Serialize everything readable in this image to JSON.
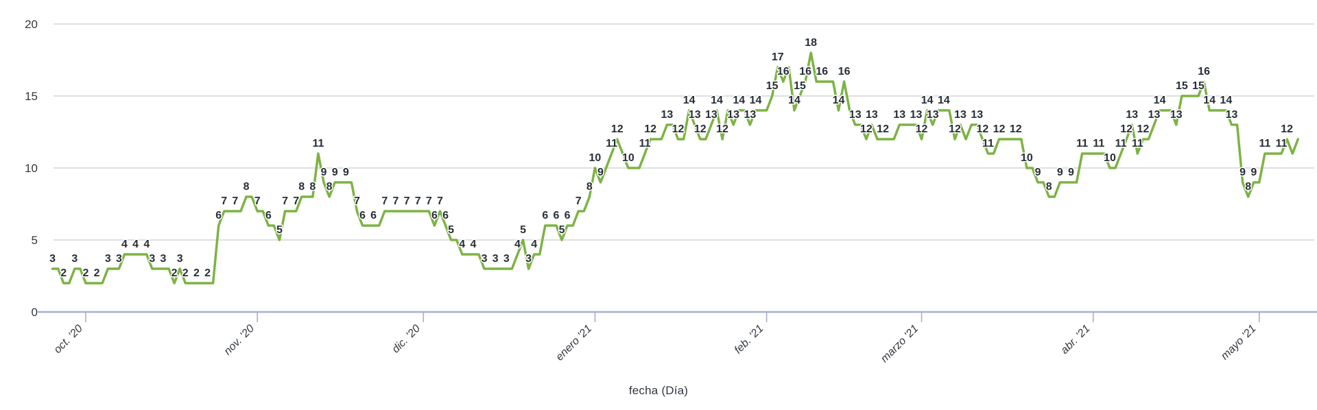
{
  "chart": {
    "x_axis_title": "fecha (Día)"
  },
  "chart_data": {
    "type": "line",
    "title": "",
    "xlabel": "fecha (Día)",
    "ylabel": "",
    "ylim": [
      0,
      20
    ],
    "grid": true,
    "legend": "none",
    "y_tick_labels": [
      "0",
      "5",
      "10",
      "15",
      "20"
    ],
    "y_ticks": [
      0,
      5,
      10,
      15,
      20
    ],
    "x_tick_labels": [
      "oct. '20",
      "nov. '20",
      "dic. '20",
      "enero '21",
      "feb. '21",
      "marzo '21",
      "abr. '21",
      "mayo '21"
    ],
    "x_tick_day_offsets": [
      6,
      37,
      67,
      98,
      129,
      157,
      188,
      218
    ],
    "x_unit": "day",
    "point_labels_shown": true,
    "line_color": "#7cb342",
    "label_color": "#272e36",
    "grid_color": "#cccccc",
    "axis_color": "#a5afd2",
    "tick_text_color": "#32373e",
    "series": [
      {
        "name": "fecha (Día)",
        "values": [
          3,
          3,
          2,
          2,
          3,
          3,
          2,
          2,
          2,
          2,
          3,
          3,
          3,
          4,
          4,
          4,
          4,
          4,
          3,
          3,
          3,
          3,
          2,
          3,
          2,
          2,
          2,
          2,
          2,
          2,
          6,
          7,
          7,
          7,
          7,
          8,
          8,
          7,
          7,
          6,
          6,
          5,
          7,
          7,
          7,
          8,
          8,
          8,
          11,
          9,
          8,
          9,
          9,
          9,
          9,
          7,
          6,
          6,
          6,
          6,
          7,
          7,
          7,
          7,
          7,
          7,
          7,
          7,
          7,
          6,
          7,
          6,
          5,
          5,
          4,
          4,
          4,
          4,
          3,
          3,
          3,
          3,
          3,
          3,
          4,
          5,
          3,
          4,
          4,
          6,
          6,
          6,
          5,
          6,
          6,
          7,
          7,
          8,
          10,
          9,
          10,
          11,
          12,
          11,
          10,
          10,
          10,
          11,
          12,
          12,
          12,
          13,
          13,
          12,
          12,
          14,
          13,
          12,
          12,
          13,
          14,
          12,
          14,
          13,
          14,
          14,
          13,
          14,
          14,
          14,
          15,
          17,
          16,
          17,
          14,
          15,
          16,
          18,
          16,
          16,
          16,
          16,
          14,
          16,
          14,
          13,
          13,
          12,
          13,
          12,
          12,
          12,
          12,
          13,
          13,
          13,
          13,
          12,
          14,
          13,
          14,
          14,
          14,
          12,
          13,
          12,
          13,
          13,
          12,
          11,
          11,
          12,
          12,
          12,
          12,
          12,
          10,
          10,
          9,
          9,
          8,
          8,
          9,
          9,
          9,
          9,
          11,
          11,
          11,
          11,
          11,
          10,
          10,
          11,
          12,
          13,
          11,
          12,
          12,
          13,
          14,
          14,
          14,
          13,
          15,
          15,
          15,
          15,
          16,
          14,
          14,
          14,
          14,
          13,
          13,
          9,
          8,
          9,
          9,
          11,
          11,
          11,
          11,
          12,
          11,
          12
        ]
      }
    ]
  }
}
